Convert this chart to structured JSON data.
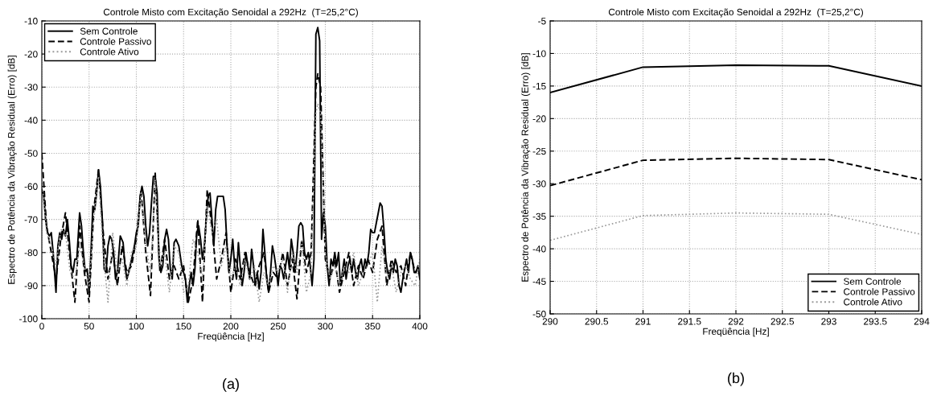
{
  "chart_data": [
    {
      "type": "line",
      "title": "Controle Misto com Excitação Senoidal a 292Hz  (T=25,2°C)",
      "xlabel": "Freqüência [Hz]",
      "ylabel": "Espectro de Potência da Vibração Residual (Erro) [dB]",
      "xlim": [
        0,
        400
      ],
      "ylim": [
        -100,
        -10
      ],
      "xticks": [
        0,
        50,
        100,
        150,
        200,
        250,
        300,
        350,
        400
      ],
      "yticks": [
        -100,
        -90,
        -80,
        -70,
        -60,
        -50,
        -40,
        -30,
        -20,
        -10
      ],
      "grid": true,
      "legend": "top left",
      "annotations": [
        "(a)"
      ],
      "series": [
        {
          "name": "Sem Controle",
          "color": "#000000",
          "line_style": "solid",
          "x": [
            0,
            2,
            4,
            6,
            8,
            10,
            12,
            14,
            15,
            17,
            19,
            21,
            23,
            25,
            27,
            29,
            31,
            33,
            35,
            37,
            40,
            42,
            44,
            46,
            48,
            50,
            52,
            54,
            56,
            58,
            60,
            62,
            64,
            66,
            68,
            70,
            72,
            74,
            76,
            78,
            80,
            83,
            86,
            88,
            90,
            92,
            95,
            98,
            100,
            102,
            104,
            106,
            108,
            110,
            112,
            114,
            116,
            118,
            120,
            122,
            124,
            126,
            128,
            130,
            132,
            134,
            136,
            138,
            140,
            142,
            145,
            148,
            150,
            152,
            154,
            156,
            158,
            160,
            162,
            164,
            166,
            168,
            170,
            172,
            174,
            176,
            178,
            180,
            182,
            184,
            186,
            188,
            190,
            192,
            194,
            196,
            198,
            200,
            202,
            204,
            206,
            208,
            210,
            212,
            214,
            216,
            218,
            220,
            222,
            224,
            226,
            228,
            230,
            232,
            234,
            236,
            238,
            240,
            242,
            244,
            246,
            248,
            250,
            252,
            254,
            256,
            258,
            260,
            262,
            264,
            266,
            268,
            270,
            272,
            274,
            276,
            278,
            280,
            282,
            284,
            286,
            288,
            290,
            292,
            294,
            296,
            298,
            300,
            302,
            304,
            306,
            308,
            310,
            312,
            314,
            316,
            318,
            320,
            322,
            324,
            326,
            328,
            330,
            332,
            334,
            336,
            338,
            340,
            342,
            344,
            346,
            348,
            350,
            352,
            354,
            356,
            358,
            360,
            362,
            364,
            366,
            368,
            370,
            372,
            374,
            376,
            378,
            380,
            382,
            384,
            386,
            388,
            390,
            392,
            394,
            396,
            398,
            400
          ],
          "values": [
            -61,
            -63,
            -70,
            -74,
            -75,
            -74,
            -80,
            -88,
            -92,
            -78,
            -74,
            -76,
            -73,
            -75,
            -70,
            -76,
            -84,
            -86,
            -82,
            -82,
            -68,
            -72,
            -80,
            -86,
            -85,
            -92,
            -80,
            -66,
            -67,
            -62,
            -55,
            -60,
            -70,
            -85,
            -86,
            -78,
            -75,
            -76,
            -80,
            -88,
            -86,
            -75,
            -77,
            -84,
            -88,
            -86,
            -82,
            -78,
            -74,
            -72,
            -63,
            -60,
            -63,
            -72,
            -78,
            -74,
            -65,
            -57,
            -57,
            -62,
            -82,
            -86,
            -84,
            -76,
            -73,
            -76,
            -85,
            -88,
            -77,
            -76,
            -78,
            -84,
            -86,
            -88,
            -95,
            -90,
            -86,
            -90,
            -85,
            -74,
            -72,
            -76,
            -82,
            -78,
            -70,
            -63,
            -62,
            -70,
            -78,
            -67,
            -63,
            -63,
            -63,
            -63,
            -67,
            -78,
            -86,
            -82,
            -76,
            -84,
            -88,
            -77,
            -84,
            -90,
            -86,
            -80,
            -84,
            -88,
            -79,
            -84,
            -90,
            -86,
            -91,
            -86,
            -73,
            -80,
            -88,
            -92,
            -86,
            -78,
            -81,
            -85,
            -90,
            -84,
            -85,
            -88,
            -84,
            -80,
            -85,
            -76,
            -80,
            -86,
            -80,
            -72,
            -71,
            -72,
            -80,
            -82,
            -80,
            -84,
            -90,
            -82,
            -14,
            -12,
            -16,
            -76,
            -68,
            -72,
            -84,
            -90,
            -82,
            -84,
            -80,
            -84,
            -80,
            -90,
            -86,
            -82,
            -88,
            -84,
            -82,
            -86,
            -82,
            -86,
            -88,
            -84,
            -82,
            -86,
            -82,
            -84,
            -80,
            -73,
            -74,
            -74,
            -71,
            -68,
            -65,
            -66,
            -73,
            -82,
            -86,
            -88,
            -84,
            -86,
            -82,
            -84,
            -90,
            -92,
            -88,
            -85,
            -82,
            -86,
            -80,
            -82,
            -86,
            -86,
            -84,
            -88
          ]
        },
        {
          "name": "Controle Passivo",
          "color": "#000000",
          "line_style": "dashed",
          "x": [
            0,
            5,
            10,
            15,
            20,
            25,
            30,
            35,
            40,
            45,
            50,
            55,
            60,
            65,
            70,
            75,
            80,
            85,
            90,
            95,
            100,
            105,
            110,
            115,
            120,
            125,
            130,
            135,
            140,
            145,
            150,
            155,
            160,
            165,
            170,
            175,
            180,
            185,
            190,
            195,
            200,
            205,
            210,
            215,
            220,
            225,
            230,
            235,
            240,
            245,
            250,
            255,
            260,
            265,
            270,
            275,
            280,
            285,
            290,
            292,
            295,
            300,
            305,
            310,
            315,
            320,
            325,
            330,
            335,
            340,
            345,
            350,
            355,
            360,
            365,
            370,
            375,
            380,
            385,
            390,
            395,
            400
          ],
          "values": [
            -50,
            -72,
            -80,
            -88,
            -76,
            -68,
            -82,
            -95,
            -72,
            -86,
            -95,
            -67,
            -55,
            -74,
            -88,
            -80,
            -90,
            -78,
            -86,
            -84,
            -76,
            -61,
            -80,
            -93,
            -56,
            -86,
            -76,
            -88,
            -84,
            -88,
            -84,
            -95,
            -88,
            -70,
            -95,
            -61,
            -72,
            -88,
            -82,
            -74,
            -92,
            -82,
            -88,
            -80,
            -86,
            -90,
            -84,
            -80,
            -92,
            -86,
            -88,
            -80,
            -90,
            -82,
            -94,
            -76,
            -86,
            -80,
            -30,
            -26,
            -30,
            -82,
            -88,
            -82,
            -92,
            -86,
            -80,
            -90,
            -84,
            -88,
            -82,
            -86,
            -76,
            -72,
            -90,
            -82,
            -86,
            -84,
            -90,
            -80,
            -86,
            -84
          ]
        },
        {
          "name": "Controle Ativo",
          "color": "#999999",
          "line_style": "dotted",
          "x": [
            0,
            5,
            10,
            15,
            20,
            25,
            30,
            35,
            40,
            45,
            50,
            55,
            60,
            65,
            70,
            75,
            80,
            85,
            90,
            95,
            100,
            105,
            110,
            115,
            120,
            125,
            130,
            135,
            140,
            145,
            150,
            155,
            160,
            165,
            170,
            175,
            180,
            185,
            190,
            195,
            200,
            205,
            210,
            215,
            220,
            225,
            230,
            235,
            240,
            245,
            250,
            255,
            260,
            265,
            270,
            275,
            280,
            285,
            290,
            292,
            295,
            300,
            305,
            310,
            315,
            320,
            325,
            330,
            335,
            340,
            345,
            350,
            355,
            360,
            365,
            370,
            375,
            380,
            385,
            390,
            395,
            400
          ],
          "values": [
            -58,
            -74,
            -78,
            -84,
            -73,
            -74,
            -86,
            -88,
            -78,
            -84,
            -90,
            -70,
            -57,
            -80,
            -95,
            -74,
            -86,
            -82,
            -90,
            -80,
            -78,
            -62,
            -78,
            -86,
            -58,
            -84,
            -80,
            -92,
            -78,
            -80,
            -92,
            -90,
            -76,
            -80,
            -88,
            -66,
            -74,
            -70,
            -84,
            -78,
            -88,
            -84,
            -90,
            -82,
            -88,
            -84,
            -95,
            -86,
            -90,
            -84,
            -86,
            -82,
            -92,
            -80,
            -86,
            -76,
            -92,
            -86,
            -38,
            -35,
            -38,
            -80,
            -88,
            -84,
            -90,
            -84,
            -86,
            -80,
            -90,
            -86,
            -84,
            -80,
            -95,
            -78,
            -88,
            -84,
            -92,
            -86,
            -84,
            -88,
            -90,
            -82
          ]
        }
      ]
    },
    {
      "type": "line",
      "title": "Controle Misto com Excitação Senoidal a 292Hz  (T=25,2°C)",
      "xlabel": "Freqüência [Hz]",
      "ylabel": "Espectro de Potência da Vibração Residual (Erro) [dB]",
      "xlim": [
        290,
        294
      ],
      "ylim": [
        -50,
        -5
      ],
      "xticks": [
        290,
        290.5,
        291,
        291.5,
        292,
        292.5,
        293,
        293.5,
        294
      ],
      "yticks": [
        -50,
        -45,
        -40,
        -35,
        -30,
        -25,
        -20,
        -15,
        -10,
        -5
      ],
      "grid": true,
      "legend": "bottom right",
      "annotations": [
        "(b)"
      ],
      "x": [
        290,
        291,
        292,
        293,
        294
      ],
      "series": [
        {
          "name": "Sem Controle",
          "color": "#000000",
          "line_style": "solid",
          "values": [
            -16,
            -12.1,
            -11.8,
            -11.9,
            -15
          ]
        },
        {
          "name": "Controle Passivo",
          "color": "#000000",
          "line_style": "dashed",
          "values": [
            -30.3,
            -26.4,
            -26.1,
            -26.3,
            -29.4
          ]
        },
        {
          "name": "Controle Ativo",
          "color": "#999999",
          "line_style": "dotted",
          "values": [
            -38.7,
            -34.9,
            -34.5,
            -34.7,
            -37.8
          ]
        }
      ]
    }
  ]
}
